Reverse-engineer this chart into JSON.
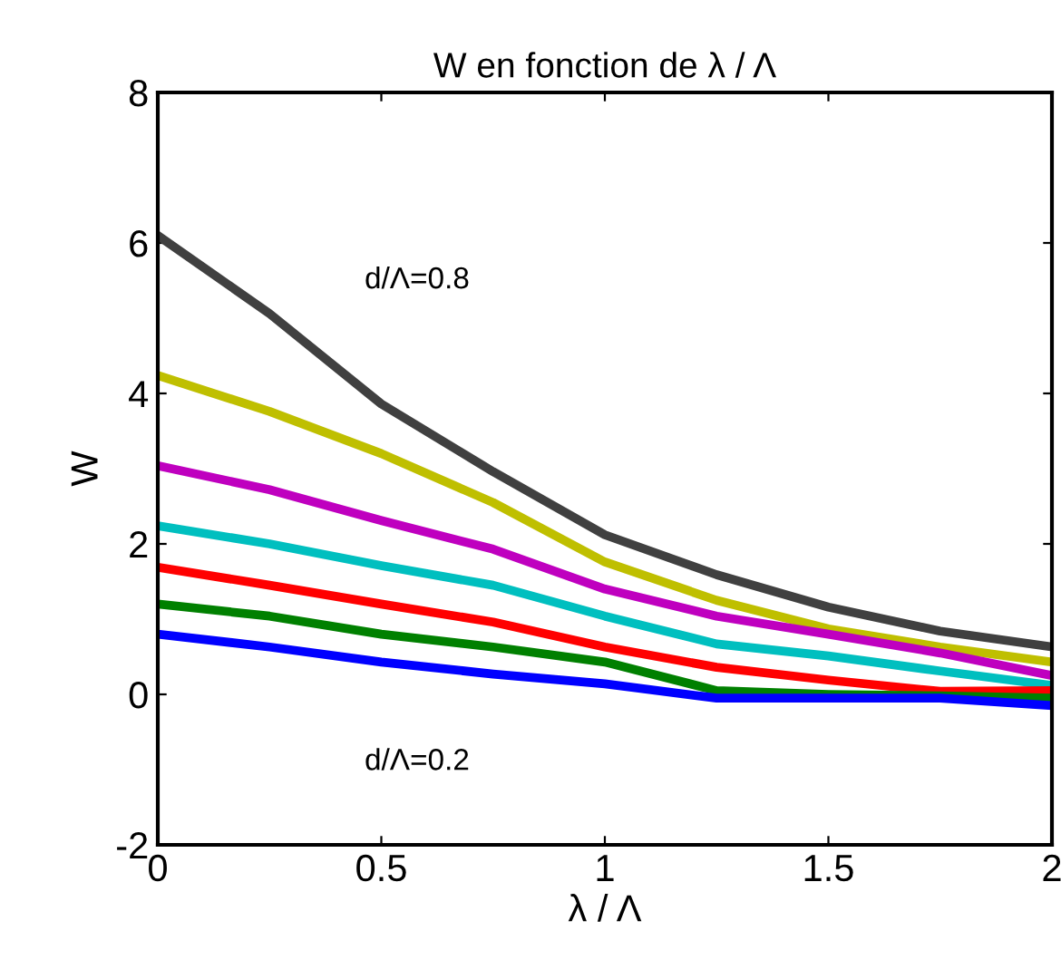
{
  "chart_data": {
    "type": "line",
    "title": "W en fonction de λ / Λ",
    "xlabel": "λ / Λ",
    "ylabel": "W",
    "x": [
      0,
      0.25,
      0.5,
      0.75,
      1,
      1.25,
      1.5,
      1.75,
      2
    ],
    "series": [
      {
        "color": "#404040",
        "values": [
          6.1,
          5.06,
          3.86,
          2.96,
          2.12,
          1.59,
          1.16,
          0.84,
          0.63
        ]
      },
      {
        "color": "#bfbf00",
        "values": [
          4.24,
          3.76,
          3.2,
          2.55,
          1.76,
          1.25,
          0.87,
          0.63,
          0.43
        ]
      },
      {
        "color": "#bf00bf",
        "values": [
          3.04,
          2.72,
          2.31,
          1.93,
          1.4,
          1.04,
          0.8,
          0.55,
          0.25
        ]
      },
      {
        "color": "#00bfbf",
        "values": [
          2.24,
          2.0,
          1.71,
          1.45,
          1.04,
          0.67,
          0.51,
          0.31,
          0.12
        ]
      },
      {
        "color": "#ff0000",
        "values": [
          1.69,
          1.45,
          1.2,
          0.96,
          0.63,
          0.36,
          0.19,
          0.04,
          0.05
        ]
      },
      {
        "color": "#008000",
        "values": [
          1.2,
          1.04,
          0.8,
          0.63,
          0.43,
          0.05,
          0,
          -0.02,
          -0.05
        ]
      },
      {
        "color": "#0000ff",
        "values": [
          0.8,
          0.63,
          0.43,
          0.27,
          0.14,
          -0.05,
          -0.05,
          -0.05,
          -0.15
        ]
      }
    ],
    "annotations": [
      "d/Λ=0.8",
      "d/Λ=0.2"
    ],
    "xlim": [
      0,
      2
    ],
    "ylim": [
      -2,
      8
    ],
    "xticks": [
      0,
      0.5,
      1,
      1.5,
      2
    ],
    "yticks": [
      -2,
      0,
      2,
      4,
      6,
      8
    ],
    "grid": false,
    "legend": false,
    "marker": "none",
    "line_style": "solid"
  }
}
